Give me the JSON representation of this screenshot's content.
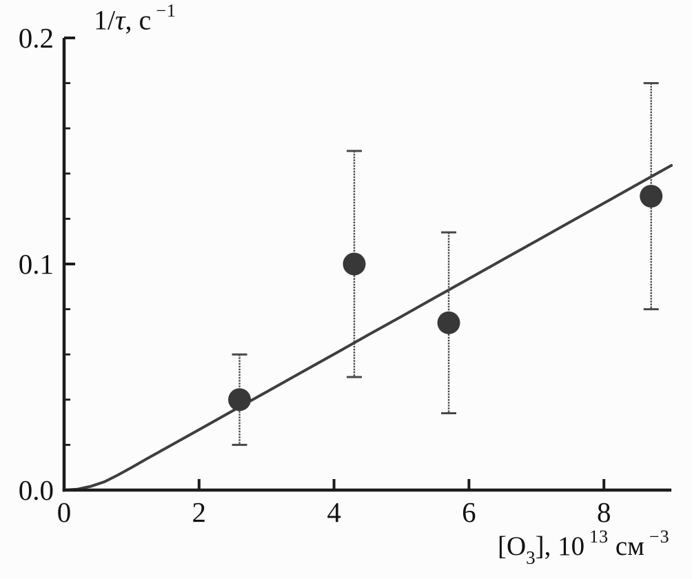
{
  "labels": {
    "y_title": {
      "part1": "1/",
      "tau": "τ",
      "part2": ", с",
      "sup": "−1"
    },
    "x_title": {
      "part1": "[O",
      "sub": "3",
      "part2": "], 10",
      "sup1": "13",
      "part3": " см",
      "sup2": "−3"
    }
  },
  "chart_data": {
    "type": "scatter",
    "title": "",
    "xlabel": "[O3], 10^13 см^−3",
    "ylabel": "1/τ, с^−1",
    "xlim": [
      0,
      9
    ],
    "ylim": [
      0,
      0.2
    ],
    "grid": false,
    "legend": "none",
    "x_ticks": {
      "values": [
        0,
        2,
        4,
        6,
        8
      ],
      "labels": [
        "0",
        "2",
        "4",
        "6",
        "8"
      ]
    },
    "y_ticks": {
      "values": [
        0,
        0.1,
        0.2
      ],
      "labels": [
        "0.0",
        "0.1",
        "0.2"
      ],
      "minor_step": 0.02
    },
    "series": [
      {
        "name": "measured-points",
        "type": "scatter_with_yerr",
        "points": [
          {
            "x": 2.6,
            "y": 0.04,
            "y_lo": 0.02,
            "y_hi": 0.06
          },
          {
            "x": 4.3,
            "y": 0.1,
            "y_lo": 0.05,
            "y_hi": 0.15
          },
          {
            "x": 5.7,
            "y": 0.074,
            "y_lo": 0.034,
            "y_hi": 0.114
          },
          {
            "x": 8.7,
            "y": 0.13,
            "y_lo": 0.08,
            "y_hi": 0.18
          }
        ]
      },
      {
        "name": "fit-curve",
        "type": "line",
        "points": [
          [
            0,
            0
          ],
          [
            0.2,
            0.0004
          ],
          [
            0.4,
            0.0017
          ],
          [
            0.6,
            0.0037
          ],
          [
            0.8,
            0.0067
          ],
          [
            1.0,
            0.01
          ],
          [
            1.2,
            0.0134
          ],
          [
            1.5,
            0.0184
          ],
          [
            2.0,
            0.0267
          ],
          [
            2.5,
            0.0351
          ],
          [
            3.0,
            0.0434
          ],
          [
            3.5,
            0.0518
          ],
          [
            4.0,
            0.0601
          ],
          [
            4.5,
            0.0685
          ],
          [
            5.0,
            0.0768
          ],
          [
            5.5,
            0.0852
          ],
          [
            6.0,
            0.0935
          ],
          [
            6.5,
            0.1019
          ],
          [
            7.0,
            0.1102
          ],
          [
            7.5,
            0.1186
          ],
          [
            8.0,
            0.1269
          ],
          [
            8.5,
            0.1353
          ],
          [
            9.0,
            0.1436
          ]
        ]
      }
    ],
    "colors": {
      "points": "#383838",
      "curve": "#3e3e3e",
      "axis": "#1c1c1c",
      "error_bars": "#474747",
      "text": "#111111",
      "background": "#fcfcfc"
    }
  }
}
